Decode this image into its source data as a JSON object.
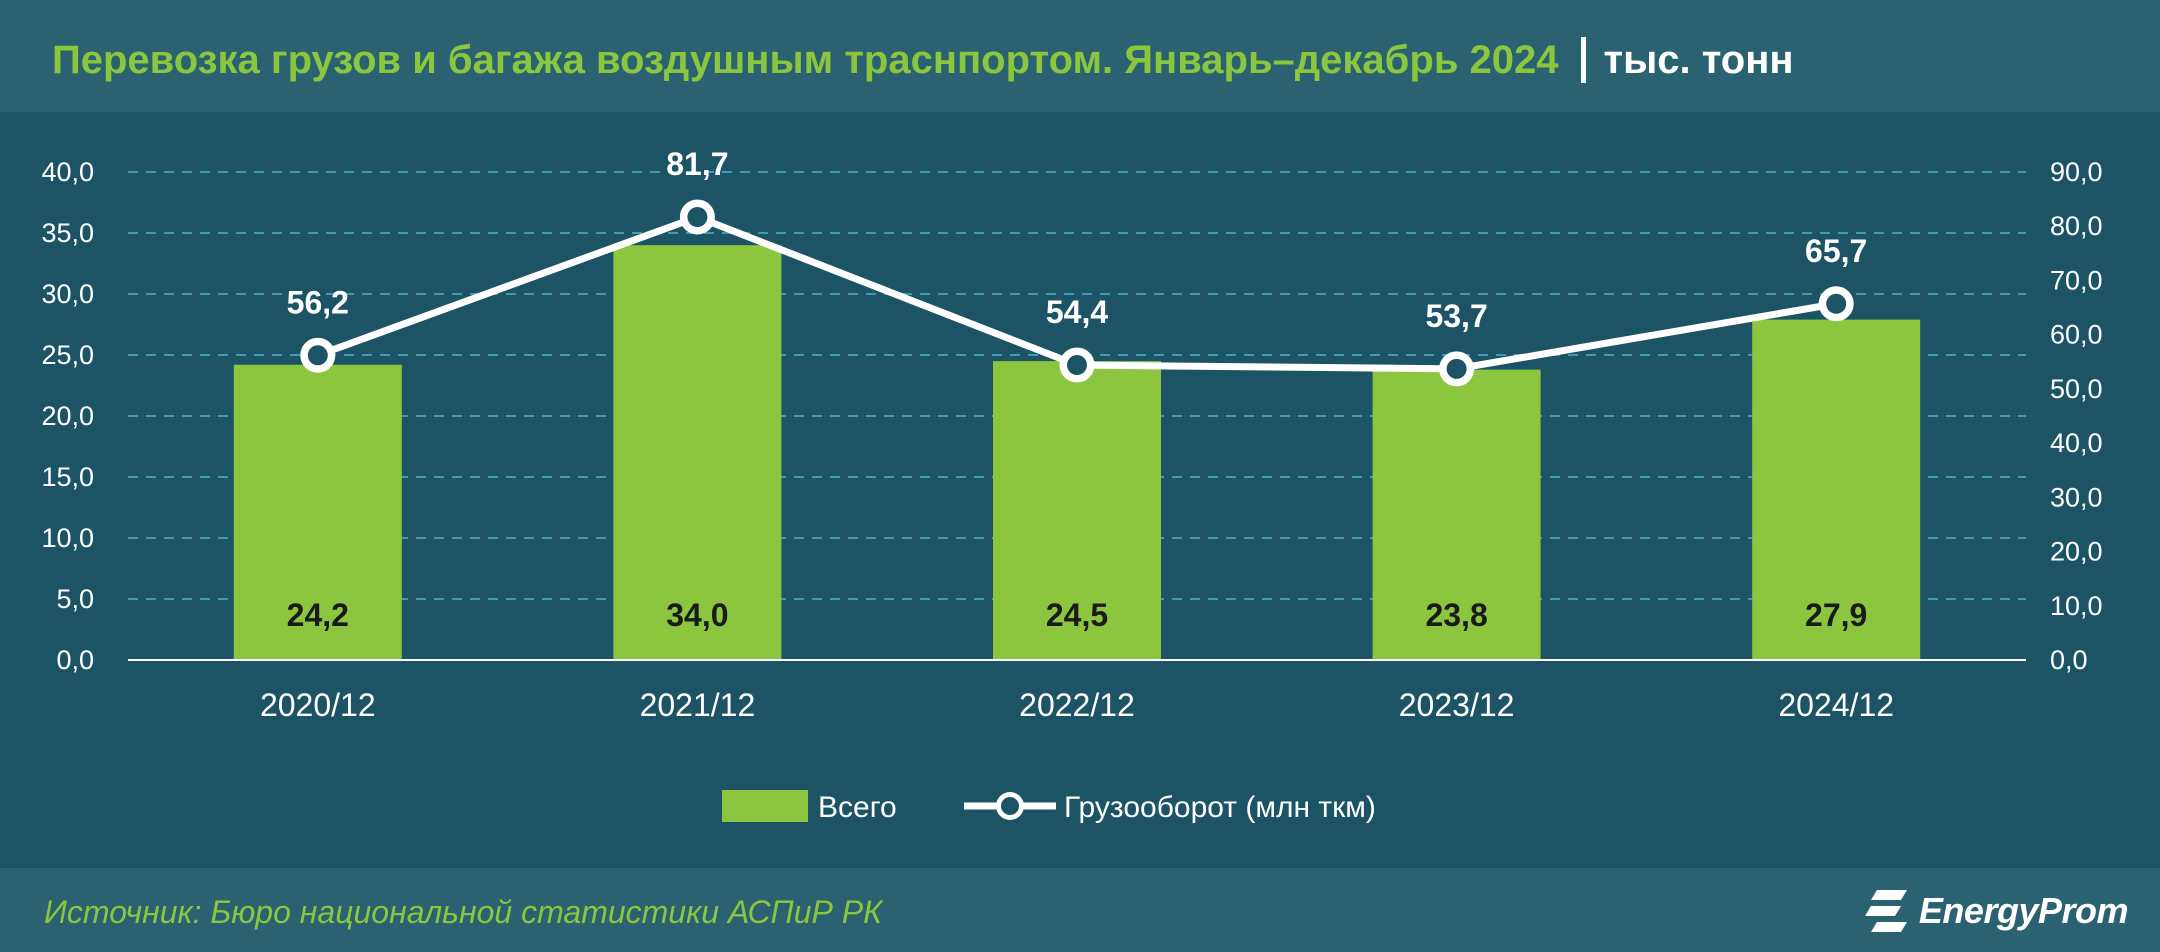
{
  "title": "Перевозка грузов и багажа воздушным трасн­портом. Январь–декабрь 2024",
  "unit": "тыс. тонн",
  "source": "Источник: Бюро национальной статистики АСПиР РК",
  "brand": "EnergyProm",
  "colors": {
    "background": "#1c5466",
    "band": "#2b6272",
    "bar": "#8cc63f",
    "line": "#ffffff",
    "grid": "#3f9bb2",
    "title": "#8cc63f"
  },
  "chart_data": {
    "type": "bar",
    "categories": [
      "2020/12",
      "2021/12",
      "2022/12",
      "2023/12",
      "2024/12"
    ],
    "series": [
      {
        "name": "Всего",
        "type": "bar",
        "axis": "left",
        "values": [
          24.2,
          34.0,
          24.5,
          23.8,
          27.9
        ],
        "labels": [
          "24,2",
          "34,0",
          "24,5",
          "23,8",
          "27,9"
        ]
      },
      {
        "name": "Грузооборот (млн ткм)",
        "type": "line",
        "axis": "right",
        "values": [
          56.2,
          81.7,
          54.4,
          53.7,
          65.7
        ],
        "labels": [
          "56,2",
          "81,7",
          "54,4",
          "53,7",
          "65,7"
        ]
      }
    ],
    "y_left": {
      "min": 0,
      "max": 40,
      "step": 5,
      "ticks": [
        "0,0",
        "5,0",
        "10,0",
        "15,0",
        "20,0",
        "25,0",
        "30,0",
        "35,0",
        "40,0"
      ]
    },
    "y_right": {
      "min": 0,
      "max": 90,
      "step": 10,
      "ticks": [
        "0,0",
        "10,0",
        "20,0",
        "30,0",
        "40,0",
        "50,0",
        "60,0",
        "70,0",
        "80,0",
        "90,0"
      ]
    },
    "grid": true,
    "legend": "bottom"
  }
}
